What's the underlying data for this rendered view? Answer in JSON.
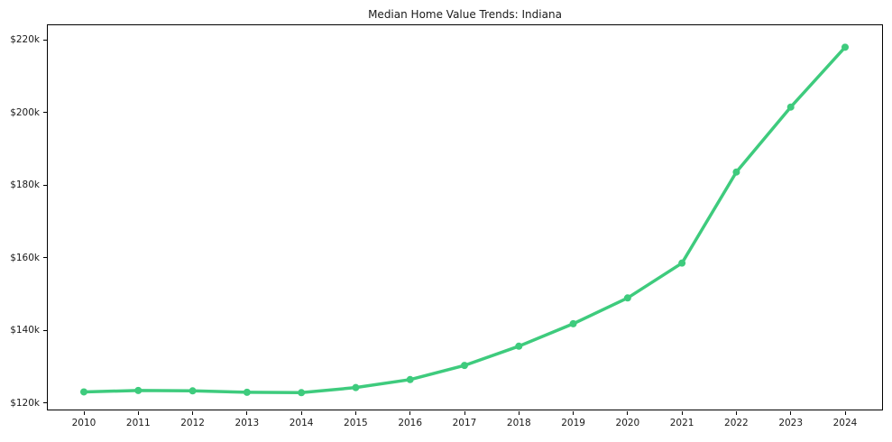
{
  "chart_data": {
    "type": "line",
    "title": "Median Home Value Trends: Indiana",
    "x": [
      2010,
      2011,
      2012,
      2013,
      2014,
      2015,
      2016,
      2017,
      2018,
      2019,
      2020,
      2021,
      2022,
      2023,
      2024
    ],
    "x_tick_labels": [
      "2010",
      "2011",
      "2012",
      "2013",
      "2014",
      "2015",
      "2016",
      "2017",
      "2018",
      "2019",
      "2020",
      "2021",
      "2022",
      "2023",
      "2024"
    ],
    "series": [
      {
        "name": "Median Home Value",
        "color": "#3ecb7d",
        "values": [
          123000,
          123400,
          123300,
          122900,
          122800,
          124200,
          126400,
          130300,
          135600,
          141800,
          148900,
          158500,
          183600,
          201500,
          218000
        ]
      }
    ],
    "y_ticks": [
      {
        "value": 120000,
        "label": "$120k"
      },
      {
        "value": 140000,
        "label": "$140k"
      },
      {
        "value": 160000,
        "label": "$160k"
      },
      {
        "value": 180000,
        "label": "$180k"
      },
      {
        "value": 200000,
        "label": "$200k"
      },
      {
        "value": 220000,
        "label": "$220k"
      }
    ],
    "ylim": [
      117900,
      224300
    ],
    "xlabel": "",
    "ylabel": "",
    "grid": false,
    "legend": "none",
    "marker": "circle",
    "axis_color": "#000000",
    "text_color": "#1a1a1a",
    "background_color": "#ffffff"
  }
}
